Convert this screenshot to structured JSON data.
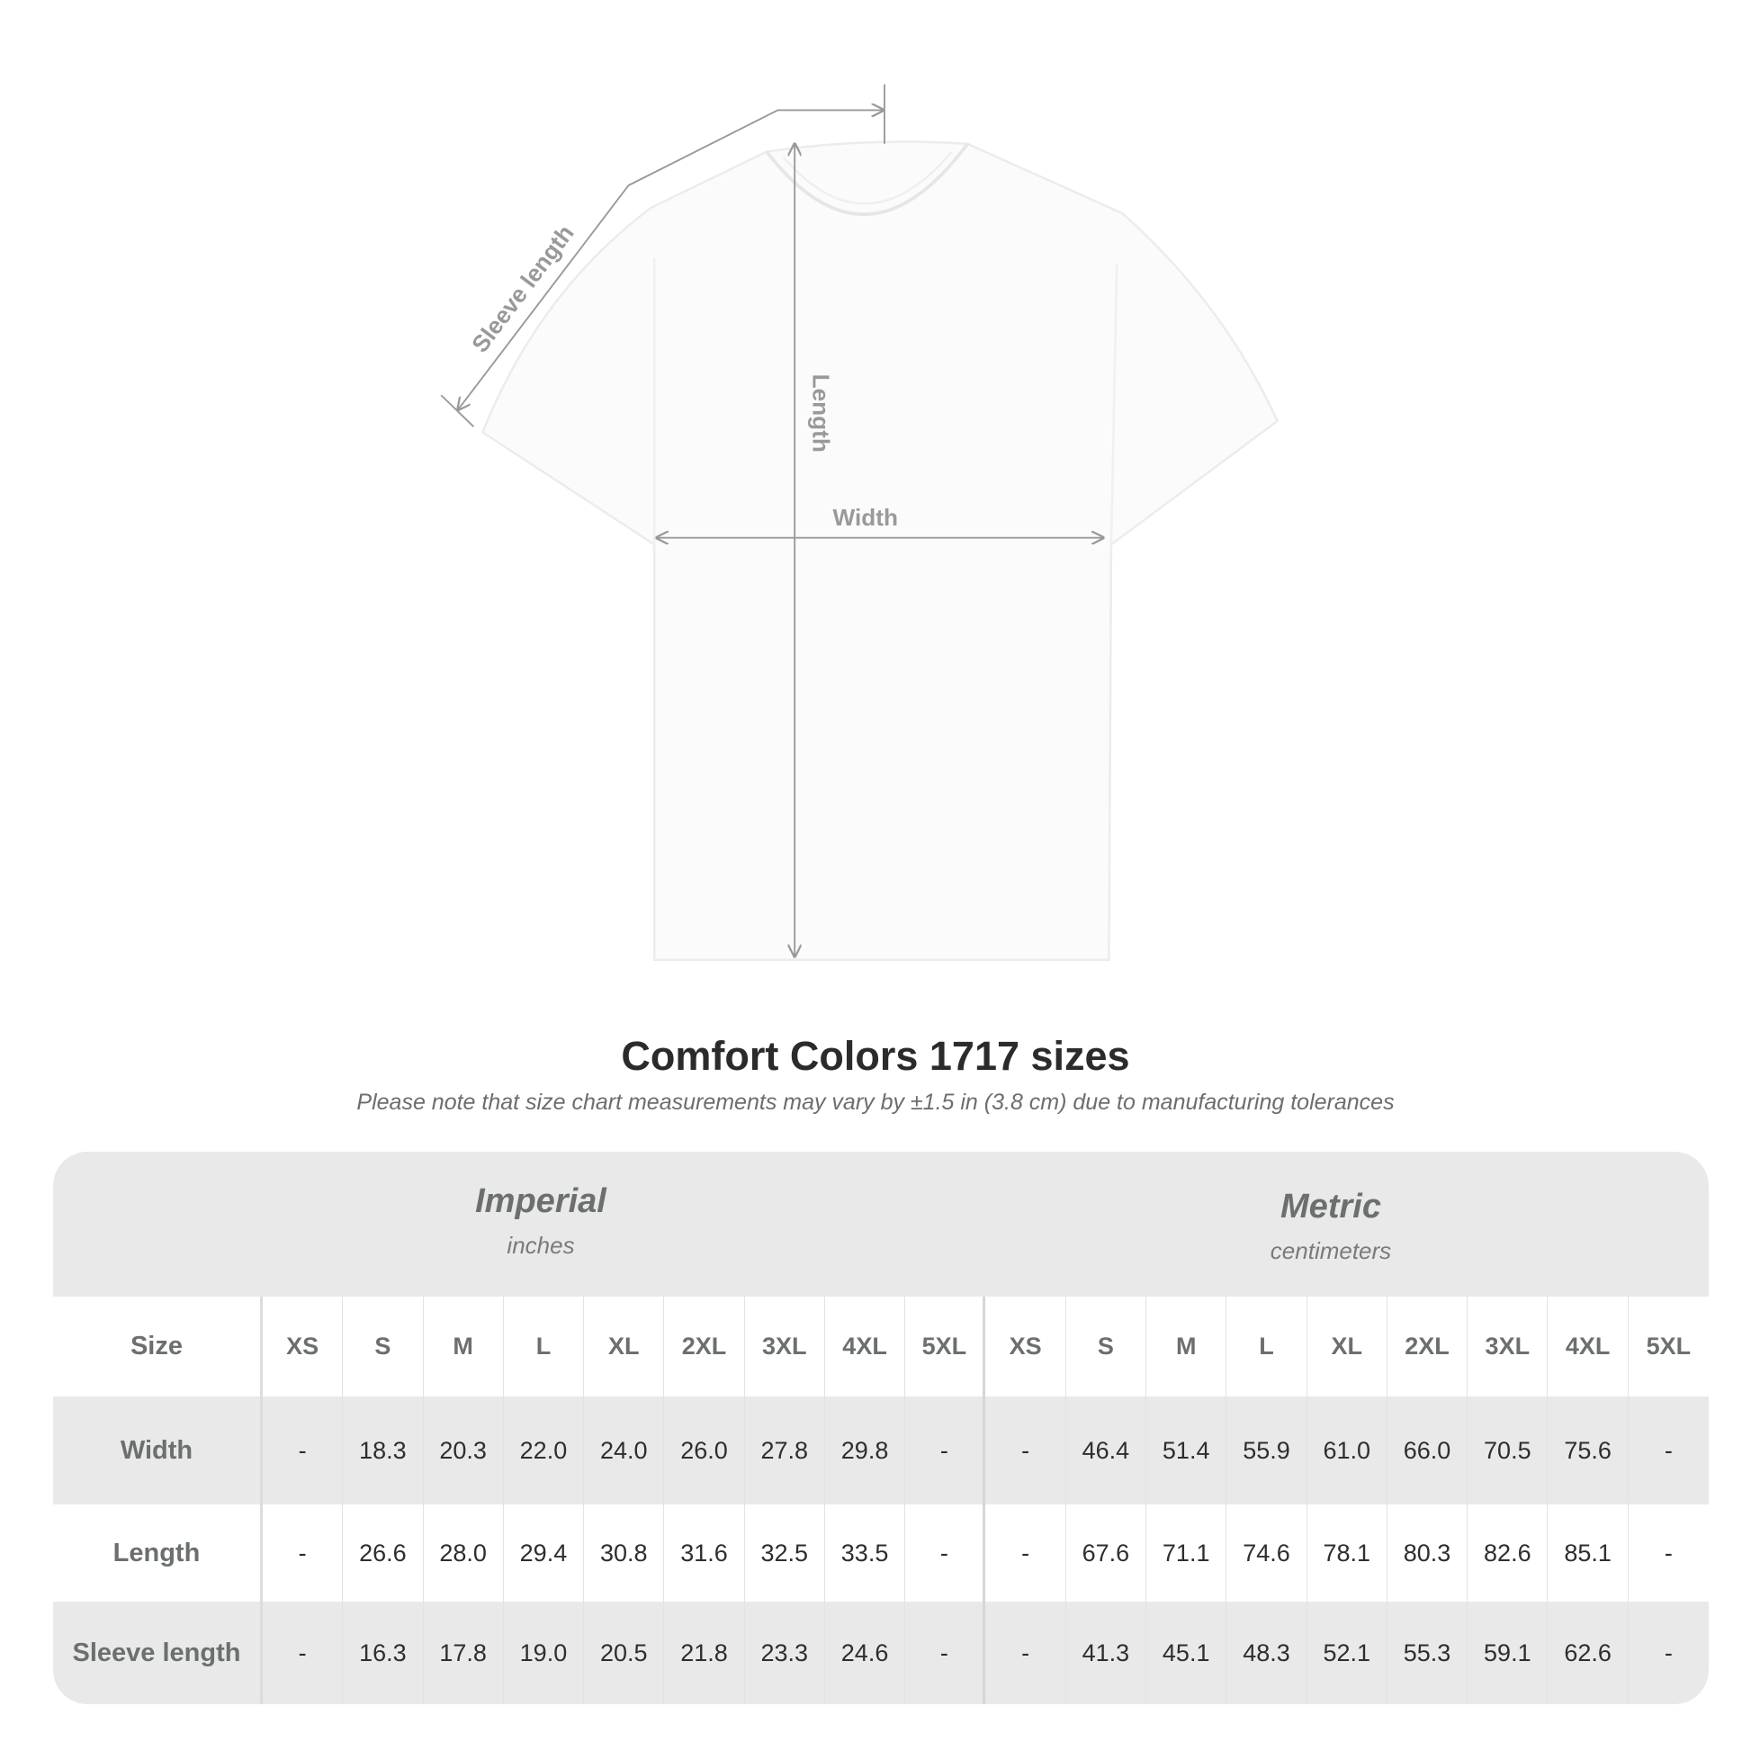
{
  "diagram": {
    "labels": {
      "sleeve": "Sleeve length",
      "length": "Length",
      "width": "Width"
    }
  },
  "title": "Comfort Colors 1717 sizes",
  "note": "Please note that size chart measurements may vary by ±1.5 in (3.8 cm) due to manufacturing tolerances",
  "table": {
    "imperial": {
      "name": "Imperial",
      "unit": "inches"
    },
    "metric": {
      "name": "Metric",
      "unit": "centimeters"
    },
    "size_label": "Size",
    "sizes": [
      "XS",
      "S",
      "M",
      "L",
      "XL",
      "2XL",
      "3XL",
      "4XL",
      "5XL"
    ],
    "rows": [
      {
        "label": "Width",
        "imperial": [
          "-",
          "18.3",
          "20.3",
          "22.0",
          "24.0",
          "26.0",
          "27.8",
          "29.8",
          "-"
        ],
        "metric": [
          "-",
          "46.4",
          "51.4",
          "55.9",
          "61.0",
          "66.0",
          "70.5",
          "75.6",
          "-"
        ]
      },
      {
        "label": "Length",
        "imperial": [
          "-",
          "26.6",
          "28.0",
          "29.4",
          "30.8",
          "31.6",
          "32.5",
          "33.5",
          "-"
        ],
        "metric": [
          "-",
          "67.6",
          "71.1",
          "74.6",
          "78.1",
          "80.3",
          "82.6",
          "85.1",
          "-"
        ]
      },
      {
        "label": "Sleeve length",
        "imperial": [
          "-",
          "16.3",
          "17.8",
          "19.0",
          "20.5",
          "21.8",
          "23.3",
          "24.6",
          "-"
        ],
        "metric": [
          "-",
          "41.3",
          "45.1",
          "48.3",
          "52.1",
          "55.3",
          "59.1",
          "62.6",
          "-"
        ]
      }
    ]
  },
  "colors": {
    "band": "#e9e9e9",
    "header_text": "#6b6f70",
    "measure_line": "#999999"
  }
}
